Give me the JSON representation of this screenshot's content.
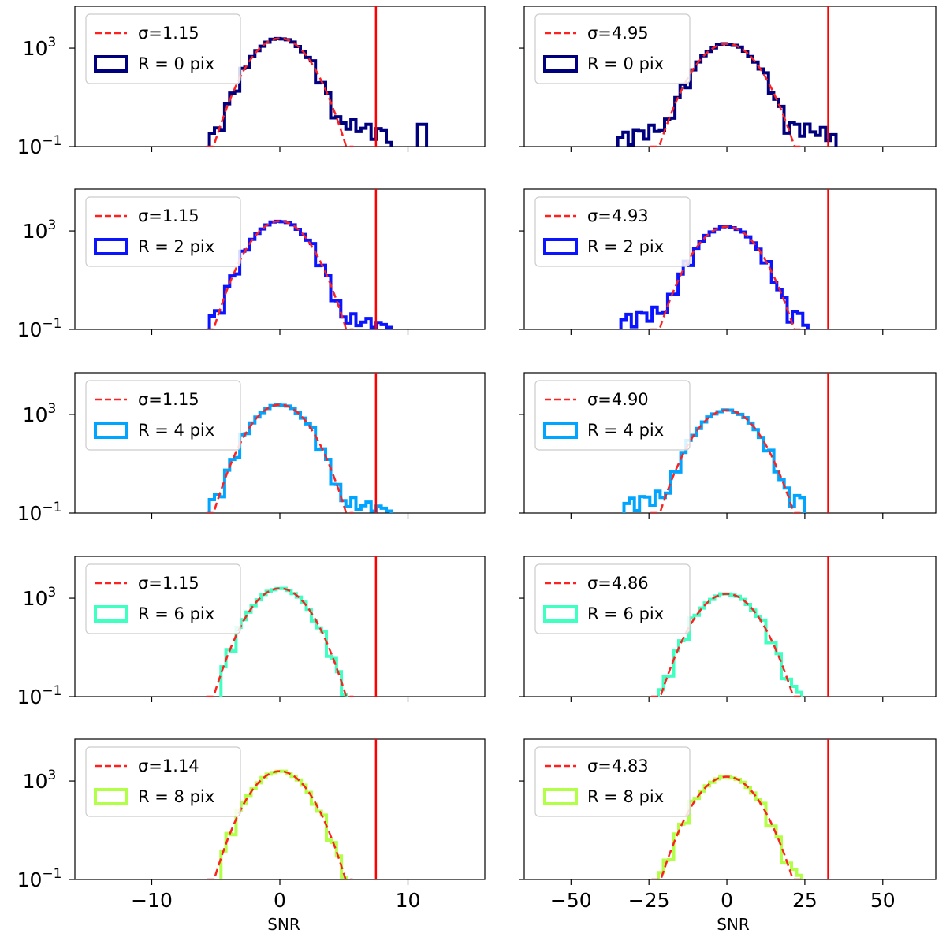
{
  "figure": {
    "xlabel_left": "SNR",
    "xlabel_right": "SNR",
    "fit_color": "#ff2020",
    "threshold_color": "#ff0000"
  },
  "chart_data": [
    {
      "type": "histogram",
      "panel": "left",
      "xlabel": "SNR",
      "xlim": [
        -16,
        16
      ],
      "ylim": [
        0.1,
        50000
      ],
      "yscale": "log",
      "y_ticks": [
        "10^{-1}",
        "10^{3}"
      ],
      "x_ticks": [
        -10,
        0,
        10
      ],
      "threshold": 7.5,
      "gauss_peak": 2500,
      "ypeak": 2500,
      "sigma_label": "σ=1.15",
      "sigma": 1.15,
      "label": "R = 0 pix",
      "color": "#00007f",
      "hist_range": [
        -5.5,
        8.7
      ],
      "tail_lo": 0.8,
      "tail_hi": 2.0,
      "extra_bins": [
        [
          10.75,
          11.45,
          0.8
        ]
      ],
      "legend": "top-left"
    },
    {
      "type": "histogram",
      "panel": "right",
      "xlabel": "SNR",
      "xlim": [
        -65,
        67
      ],
      "ylim": [
        0.1,
        50000
      ],
      "yscale": "log",
      "x_ticks": [
        -50,
        -25,
        0,
        25,
        50
      ],
      "threshold": 32.5,
      "gauss_peak": 1500,
      "ypeak": 1500,
      "sigma_label": "σ=4.95",
      "sigma": 4.95,
      "label": "R = 0 pix",
      "color": "#00007f",
      "hist_range": [
        -35,
        35
      ],
      "tail_lo": 1.2,
      "tail_hi": 1.5,
      "extra_bins": [],
      "legend": "top-left"
    },
    {
      "type": "histogram",
      "panel": "left",
      "xlabel": "SNR",
      "xlim": [
        -16,
        16
      ],
      "ylim": [
        0.1,
        50000
      ],
      "yscale": "log",
      "x_ticks": [
        -10,
        0,
        10
      ],
      "threshold": 7.5,
      "gauss_peak": 2500,
      "ypeak": 2500,
      "sigma_label": "σ=1.15",
      "sigma": 1.15,
      "label": "R = 2 pix",
      "color": "#0a14ff",
      "hist_range": [
        -5.5,
        8.7
      ],
      "tail_lo": 0.8,
      "tail_hi": 0.7,
      "extra_bins": [],
      "legend": "top-left"
    },
    {
      "type": "histogram",
      "panel": "right",
      "xlabel": "SNR",
      "xlim": [
        -65,
        67
      ],
      "ylim": [
        0.1,
        50000
      ],
      "yscale": "log",
      "x_ticks": [
        -50,
        -25,
        0,
        25,
        50
      ],
      "threshold": 32.5,
      "gauss_peak": 1500,
      "ypeak": 1500,
      "sigma_label": "σ=4.93",
      "sigma": 4.93,
      "label": "R = 2 pix",
      "color": "#0a14ff",
      "hist_range": [
        -34,
        26
      ],
      "tail_lo": 1.2,
      "tail_hi": 0.9,
      "extra_bins": [],
      "legend": "top-left"
    },
    {
      "type": "histogram",
      "panel": "left",
      "xlabel": "SNR",
      "xlim": [
        -16,
        16
      ],
      "ylim": [
        0.1,
        50000
      ],
      "yscale": "log",
      "x_ticks": [
        -10,
        0,
        10
      ],
      "threshold": 7.5,
      "gauss_peak": 2500,
      "ypeak": 2500,
      "sigma_label": "σ=1.15",
      "sigma": 1.15,
      "label": "R = 4 pix",
      "color": "#00a5ff",
      "hist_range": [
        -5.5,
        8.7
      ],
      "tail_lo": 0.8,
      "tail_hi": 0.7,
      "extra_bins": [],
      "legend": "top-left"
    },
    {
      "type": "histogram",
      "panel": "right",
      "xlabel": "SNR",
      "xlim": [
        -65,
        67
      ],
      "ylim": [
        0.1,
        50000
      ],
      "yscale": "log",
      "x_ticks": [
        -50,
        -25,
        0,
        25,
        50
      ],
      "threshold": 32.5,
      "gauss_peak": 1500,
      "ypeak": 1500,
      "sigma_label": "σ=4.90",
      "sigma": 4.9,
      "label": "R = 4 pix",
      "color": "#00a5ff",
      "hist_range": [
        -33,
        25
      ],
      "tail_lo": 1.1,
      "tail_hi": 0.9,
      "extra_bins": [],
      "legend": "top-left"
    },
    {
      "type": "histogram",
      "panel": "left",
      "xlabel": "SNR",
      "xlim": [
        -16,
        16
      ],
      "ylim": [
        0.1,
        50000
      ],
      "yscale": "log",
      "x_ticks": [
        -10,
        0,
        10
      ],
      "threshold": 7.5,
      "gauss_peak": 2500,
      "ypeak": 2500,
      "sigma_label": "σ=1.15",
      "sigma": 1.15,
      "label": "R = 6 pix",
      "color": "#3fffc1",
      "hist_range": [
        -4.6,
        5.2
      ],
      "tail_lo": 0.3,
      "tail_hi": 0.3,
      "extra_bins": [],
      "legend": "top-left"
    },
    {
      "type": "histogram",
      "panel": "right",
      "xlabel": "SNR",
      "xlim": [
        -65,
        67
      ],
      "ylim": [
        0.1,
        50000
      ],
      "yscale": "log",
      "x_ticks": [
        -50,
        -25,
        0,
        25,
        50
      ],
      "threshold": 32.5,
      "gauss_peak": 1500,
      "ypeak": 1500,
      "sigma_label": "σ=4.86",
      "sigma": 4.86,
      "label": "R = 6 pix",
      "color": "#3fffc1",
      "hist_range": [
        -22,
        24
      ],
      "tail_lo": 0.4,
      "tail_hi": 0.6,
      "extra_bins": [],
      "legend": "top-left"
    },
    {
      "type": "histogram",
      "panel": "left",
      "xlabel": "SNR",
      "xlim": [
        -16,
        16
      ],
      "ylim": [
        0.1,
        50000
      ],
      "yscale": "log",
      "x_ticks": [
        -10,
        0,
        10
      ],
      "threshold": 7.5,
      "gauss_peak": 2500,
      "ypeak": 2500,
      "sigma_label": "σ=1.14",
      "sigma": 1.14,
      "label": "R = 8 pix",
      "color": "#b1ff46",
      "hist_range": [
        -4.6,
        5.2
      ],
      "tail_lo": 0.3,
      "tail_hi": 0.3,
      "extra_bins": [],
      "legend": "top-left"
    },
    {
      "type": "histogram",
      "panel": "right",
      "xlabel": "SNR",
      "xlim": [
        -65,
        67
      ],
      "ylim": [
        0.1,
        50000
      ],
      "yscale": "log",
      "x_ticks": [
        -50,
        -25,
        0,
        25,
        50
      ],
      "threshold": 32.5,
      "gauss_peak": 1500,
      "ypeak": 1500,
      "sigma_label": "σ=4.83",
      "sigma": 4.83,
      "label": "R = 8 pix",
      "color": "#b1ff46",
      "hist_range": [
        -22,
        24
      ],
      "tail_lo": 0.4,
      "tail_hi": 0.6,
      "extra_bins": [],
      "legend": "top-left"
    }
  ]
}
